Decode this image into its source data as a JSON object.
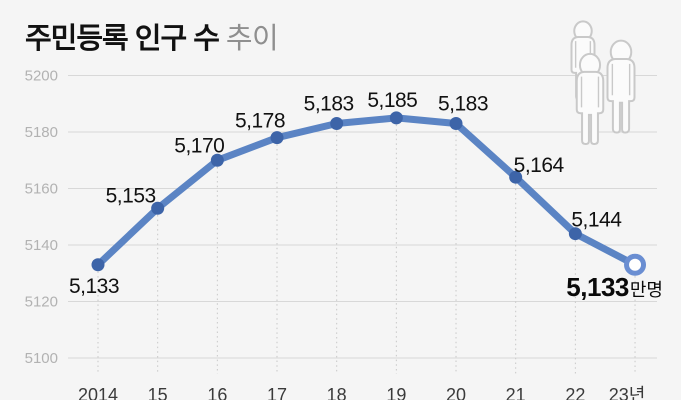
{
  "title": {
    "main": "주민등록 인구 수",
    "sub": "추이"
  },
  "colors": {
    "background": "#f5f5f5",
    "line": "#5b84c4",
    "point": "#3d64a8",
    "last_point_ring": "#6a8ed2",
    "grid": "#d8d8d8",
    "dotted_guide": "#c8c8c8",
    "y_tick_text": "#b2b2b2",
    "x_tick_text": "#3a3a3a",
    "label_text": "#111111",
    "icon_stroke": "#c9c9c9",
    "icon_fill": "#fbfbfb"
  },
  "icons": {
    "top_right": "three-people-outline-icon"
  },
  "chart_data": {
    "type": "line",
    "title": "주민등록 인구 수 추이",
    "categories": [
      "2014",
      "15",
      "16",
      "17",
      "18",
      "19",
      "20",
      "21",
      "22",
      "23년"
    ],
    "values": [
      5133,
      5153,
      5170,
      5178,
      5183,
      5185,
      5183,
      5164,
      5144,
      5133
    ],
    "point_labels": [
      "5,133",
      "5,153",
      "5,170",
      "5,178",
      "5,183",
      "5,185",
      "5,183",
      "5,164",
      "5,144",
      "5,133"
    ],
    "final_label": {
      "value": "5,133",
      "unit": "만명"
    },
    "y_ticks": [
      5200,
      5180,
      5160,
      5140,
      5120,
      5100
    ],
    "ylim": [
      5100,
      5200
    ],
    "xlabel": "",
    "ylabel": "",
    "grid": true,
    "legend": false
  }
}
